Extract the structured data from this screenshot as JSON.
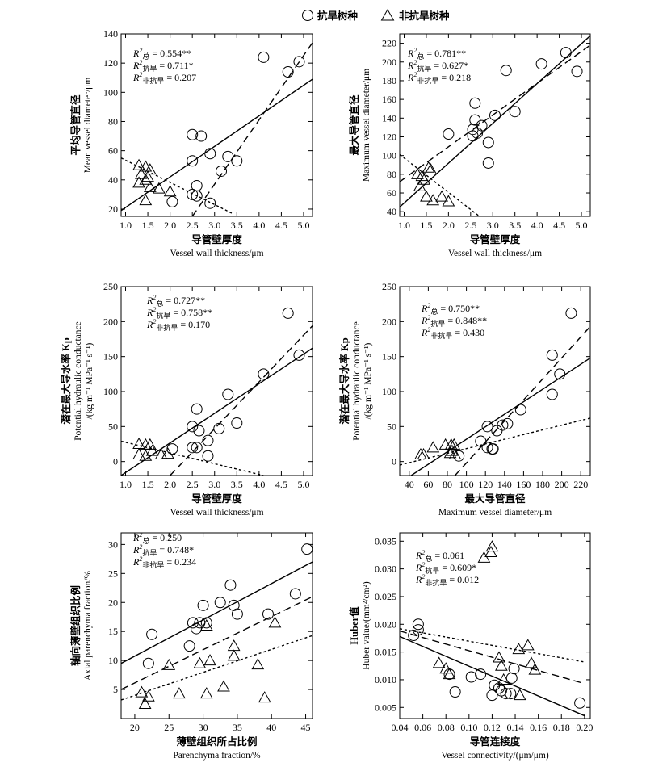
{
  "legend": {
    "drought_label": "抗旱树种",
    "nondrought_label": "非抗旱树种",
    "drought_marker": "circle",
    "nondrought_marker": "triangle"
  },
  "line_styles": {
    "total": "solid",
    "drought": "dashed",
    "nondrought": "dotted"
  },
  "chart_data": [
    {
      "type": "scatter",
      "xlabel_cn": "导管壁厚度",
      "xlabel_en": "Vessel wall thickness/μm",
      "ylabel_cn": "平均导管直径",
      "ylabel_en": "Mean vessel diameter/μm",
      "xlim": [
        0.9,
        5.2
      ],
      "ylim": [
        15,
        140
      ],
      "xticks": [
        1.0,
        1.5,
        2.0,
        2.5,
        3.0,
        3.5,
        4.0,
        4.5,
        5.0
      ],
      "yticks": [
        20,
        40,
        60,
        80,
        100,
        120,
        140
      ],
      "xtick_labels": [
        "1.0",
        "1.5",
        "2.0",
        "2.5",
        "3.0",
        "3.5",
        "4.0",
        "4.5",
        "5.0"
      ],
      "ytick_labels": [
        "20",
        "40",
        "60",
        "80",
        "100",
        "120",
        "140"
      ],
      "stats": [
        "R²总 = 0.554**",
        "R²抗旱 = 0.711*",
        "R²非抗旱 = 0.207"
      ],
      "drought": [
        [
          2.5,
          71
        ],
        [
          2.7,
          70
        ],
        [
          2.5,
          53
        ],
        [
          2.9,
          58
        ],
        [
          3.15,
          46
        ],
        [
          3.3,
          56
        ],
        [
          3.5,
          53
        ],
        [
          2.6,
          36
        ],
        [
          2.5,
          30
        ],
        [
          2.6,
          29
        ],
        [
          2.05,
          25
        ],
        [
          2.9,
          24
        ],
        [
          4.1,
          124
        ],
        [
          4.65,
          114
        ],
        [
          4.9,
          121
        ]
      ],
      "nondrought": [
        [
          1.3,
          50
        ],
        [
          1.45,
          49
        ],
        [
          1.55,
          47
        ],
        [
          1.35,
          44
        ],
        [
          1.5,
          42
        ],
        [
          1.3,
          38
        ],
        [
          1.55,
          35
        ],
        [
          1.75,
          34
        ],
        [
          1.45,
          40
        ],
        [
          2.0,
          32
        ],
        [
          1.45,
          26
        ]
      ],
      "lines": [
        {
          "style": "total",
          "x": [
            0.9,
            5.2
          ],
          "y": [
            19,
            109
          ]
        },
        {
          "style": "drought",
          "x": [
            2.5,
            5.2
          ],
          "y": [
            15,
            134
          ]
        },
        {
          "style": "nondrought",
          "x": [
            0.9,
            3.4
          ],
          "y": [
            55,
            17
          ]
        }
      ]
    },
    {
      "type": "scatter",
      "xlabel_cn": "导管壁厚度",
      "xlabel_en": "Vessel wall thickness/μm",
      "ylabel_cn": "最大导管直径",
      "ylabel_en": "Maximum vessel diameter/μm",
      "xlim": [
        0.9,
        5.2
      ],
      "ylim": [
        35,
        230
      ],
      "xticks": [
        1.0,
        1.5,
        2.0,
        2.5,
        3.0,
        3.5,
        4.0,
        4.5,
        5.0
      ],
      "yticks": [
        40,
        60,
        80,
        100,
        120,
        140,
        160,
        180,
        200,
        220
      ],
      "xtick_labels": [
        "1.0",
        "1.5",
        "2.0",
        "2.5",
        "3.0",
        "3.5",
        "4.0",
        "4.5",
        "5.0"
      ],
      "ytick_labels": [
        "40",
        "60",
        "80",
        "100",
        "120",
        "140",
        "160",
        "180",
        "200",
        "220"
      ],
      "stats": [
        "R²总 = 0.781**",
        "R²抗旱 = 0.627*",
        "R²非抗旱 = 0.218"
      ],
      "drought": [
        [
          2.0,
          123
        ],
        [
          2.55,
          128
        ],
        [
          2.55,
          121
        ],
        [
          2.6,
          156
        ],
        [
          2.6,
          138
        ],
        [
          2.75,
          132
        ],
        [
          2.65,
          124
        ],
        [
          2.9,
          114
        ],
        [
          2.9,
          92
        ],
        [
          3.05,
          143
        ],
        [
          3.3,
          191
        ],
        [
          3.5,
          147
        ],
        [
          4.1,
          198
        ],
        [
          4.65,
          210
        ],
        [
          4.9,
          190
        ]
      ],
      "nondrought": [
        [
          1.3,
          80
        ],
        [
          1.4,
          78
        ],
        [
          1.45,
          74
        ],
        [
          1.35,
          67
        ],
        [
          1.55,
          87
        ],
        [
          1.6,
          85
        ],
        [
          1.5,
          56
        ],
        [
          1.65,
          52
        ],
        [
          1.85,
          56
        ],
        [
          2.0,
          51
        ]
      ],
      "lines": [
        {
          "style": "total",
          "x": [
            0.9,
            5.2
          ],
          "y": [
            45,
            228
          ]
        },
        {
          "style": "drought",
          "x": [
            0.9,
            5.2
          ],
          "y": [
            72,
            218
          ]
        },
        {
          "style": "nondrought",
          "x": [
            0.9,
            2.7
          ],
          "y": [
            101,
            35
          ]
        }
      ]
    },
    {
      "type": "scatter",
      "xlabel_cn": "导管壁厚度",
      "xlabel_en": "Vessel wall thickness/μm",
      "ylabel_cn": "潜在最大导水率 Kp",
      "ylabel_en": "Potential hydraulic conductance",
      "ylabel_unit": "/(kg m⁻¹ MPa⁻¹ s⁻¹)",
      "xlim": [
        0.9,
        5.2
      ],
      "ylim": [
        -20,
        250
      ],
      "xticks": [
        1.0,
        1.5,
        2.0,
        2.5,
        3.0,
        3.5,
        4.0,
        4.5,
        5.0
      ],
      "yticks": [
        0,
        50,
        100,
        150,
        200,
        250
      ],
      "xtick_labels": [
        "1.0",
        "1.5",
        "2.0",
        "2.5",
        "3.0",
        "3.5",
        "4.0",
        "4.5",
        "5.0"
      ],
      "ytick_labels": [
        "0",
        "50",
        "100",
        "150",
        "200",
        "250"
      ],
      "stats": [
        "R²总 = 0.727**",
        "R²抗旱 = 0.758**",
        "R²非抗旱 = 0.170"
      ],
      "drought": [
        [
          2.05,
          18
        ],
        [
          2.5,
          50
        ],
        [
          2.5,
          20
        ],
        [
          2.6,
          20
        ],
        [
          2.6,
          75
        ],
        [
          2.65,
          44
        ],
        [
          2.85,
          30
        ],
        [
          2.85,
          8
        ],
        [
          3.1,
          47
        ],
        [
          3.3,
          96
        ],
        [
          3.5,
          55
        ],
        [
          4.1,
          125
        ],
        [
          4.65,
          212
        ],
        [
          4.9,
          152
        ]
      ],
      "nondrought": [
        [
          1.3,
          25
        ],
        [
          1.45,
          24
        ],
        [
          1.55,
          24
        ],
        [
          1.3,
          10
        ],
        [
          1.45,
          8
        ],
        [
          1.6,
          15
        ],
        [
          1.8,
          10
        ],
        [
          1.95,
          11
        ]
      ],
      "lines": [
        {
          "style": "total",
          "x": [
            0.9,
            5.2
          ],
          "y": [
            -20,
            162
          ]
        },
        {
          "style": "drought",
          "x": [
            2.0,
            5.2
          ],
          "y": [
            -20,
            194
          ]
        },
        {
          "style": "nondrought",
          "x": [
            0.9,
            4.1
          ],
          "y": [
            29,
            -20
          ]
        }
      ]
    },
    {
      "type": "scatter",
      "xlabel_cn": "最大导管直径",
      "xlabel_en": "Maximum vessel diameter/μm",
      "ylabel_cn": "潜在最大导水率 Kp",
      "ylabel_en": "Potential hydraulic conductance",
      "ylabel_unit": "/(kg m⁻¹ MPa⁻¹ s⁻¹)",
      "xlim": [
        30,
        230
      ],
      "ylim": [
        -20,
        250
      ],
      "xticks": [
        40,
        60,
        80,
        100,
        120,
        140,
        160,
        180,
        200,
        220
      ],
      "yticks": [
        0,
        50,
        100,
        150,
        200,
        250
      ],
      "xtick_labels": [
        "40",
        "60",
        "80",
        "100",
        "120",
        "140",
        "160",
        "180",
        "200",
        "220"
      ],
      "ytick_labels": [
        "0",
        "50",
        "100",
        "150",
        "200",
        "250"
      ],
      "stats": [
        "R²总 = 0.750**",
        "R²抗旱 = 0.848**",
        "R²非抗旱 = 0.430"
      ],
      "drought": [
        [
          92,
          8
        ],
        [
          115,
          29
        ],
        [
          122,
          50
        ],
        [
          122,
          20
        ],
        [
          127,
          18
        ],
        [
          128,
          18
        ],
        [
          132,
          44
        ],
        [
          138,
          52
        ],
        [
          143,
          54
        ],
        [
          157,
          74
        ],
        [
          190,
          96
        ],
        [
          190,
          152
        ],
        [
          198,
          125
        ],
        [
          210,
          212
        ]
      ],
      "nondrought": [
        [
          52,
          10
        ],
        [
          55,
          10
        ],
        [
          65,
          20
        ],
        [
          78,
          24
        ],
        [
          84,
          24
        ],
        [
          87,
          24
        ],
        [
          83,
          12
        ],
        [
          88,
          10
        ],
        [
          85,
          15
        ]
      ],
      "lines": [
        {
          "style": "total",
          "x": [
            42,
            230
          ],
          "y": [
            -20,
            148
          ]
        },
        {
          "style": "drought",
          "x": [
            88,
            230
          ],
          "y": [
            -20,
            193
          ]
        },
        {
          "style": "nondrought",
          "x": [
            30,
            230
          ],
          "y": [
            -5,
            62
          ]
        }
      ]
    },
    {
      "type": "scatter",
      "xlabel_cn": "薄壁组织所占比例",
      "xlabel_en": "Parenchyma fraction/%",
      "ylabel_cn": "轴向薄壁组织比例",
      "ylabel_en": "Axial parenchyma fraction/%",
      "xlim": [
        18,
        46
      ],
      "ylim": [
        0,
        32
      ],
      "xticks": [
        20,
        25,
        30,
        35,
        40,
        45
      ],
      "yticks": [
        5,
        10,
        15,
        20,
        25,
        30
      ],
      "xtick_labels": [
        "20",
        "25",
        "30",
        "35",
        "40",
        "45"
      ],
      "ytick_labels": [
        "5",
        "10",
        "15",
        "20",
        "25",
        "30"
      ],
      "stats": [
        "R²总 = 0.250",
        "R²抗旱 = 0.748*",
        "R²非抗旱 = 0.234"
      ],
      "drought": [
        [
          22,
          9.5
        ],
        [
          22.5,
          14.5
        ],
        [
          28,
          12.5
        ],
        [
          28.5,
          16.5
        ],
        [
          29,
          15.5
        ],
        [
          29.5,
          16.5
        ],
        [
          30,
          19.5
        ],
        [
          30.5,
          16.5
        ],
        [
          32.5,
          20
        ],
        [
          34,
          23
        ],
        [
          34.5,
          19.5
        ],
        [
          35,
          18
        ],
        [
          39.5,
          18
        ],
        [
          43.5,
          21.5
        ],
        [
          45.2,
          29.2
        ]
      ],
      "nondrought": [
        [
          21,
          4.5
        ],
        [
          21.5,
          2.5
        ],
        [
          22,
          3.8
        ],
        [
          25,
          9.2
        ],
        [
          26.5,
          4.3
        ],
        [
          29.5,
          9.5
        ],
        [
          30.5,
          4.3
        ],
        [
          31,
          10
        ],
        [
          30.5,
          16
        ],
        [
          33,
          5.5
        ],
        [
          34.5,
          10.8
        ],
        [
          34.5,
          12.5
        ],
        [
          38,
          9.3
        ],
        [
          39,
          3.6
        ],
        [
          40.5,
          16.5
        ]
      ],
      "lines": [
        {
          "style": "total",
          "x": [
            18,
            46
          ],
          "y": [
            9.5,
            27
          ]
        },
        {
          "style": "drought",
          "x": [
            18,
            46
          ],
          "y": [
            5,
            21
          ]
        },
        {
          "style": "nondrought",
          "x": [
            18,
            46
          ],
          "y": [
            3.2,
            14.3
          ]
        }
      ]
    },
    {
      "type": "scatter",
      "xlabel_cn": "导管连接度",
      "xlabel_en": "Vessel connectivity/(μm/μm)",
      "ylabel_cn": "Huber值",
      "ylabel_en": "Huber value/(mm²/cm²)",
      "xlim": [
        0.04,
        0.205
      ],
      "ylim": [
        0.003,
        0.0365
      ],
      "xticks": [
        0.04,
        0.06,
        0.08,
        0.1,
        0.12,
        0.14,
        0.16,
        0.18,
        0.2
      ],
      "yticks": [
        0.005,
        0.01,
        0.015,
        0.02,
        0.025,
        0.03,
        0.035
      ],
      "xtick_labels": [
        "0.04",
        "0.06",
        "0.08",
        "0.10",
        "0.12",
        "0.14",
        "0.16",
        "0.18",
        "0.20"
      ],
      "ytick_labels": [
        "0.005",
        "0.010",
        "0.015",
        "0.020",
        "0.025",
        "0.030",
        "0.035"
      ],
      "stats": [
        "R²总 = 0.061",
        "R²抗旱 = 0.609*",
        "R²非抗旱 = 0.012"
      ],
      "drought": [
        [
          0.052,
          0.018
        ],
        [
          0.056,
          0.02
        ],
        [
          0.056,
          0.019
        ],
        [
          0.083,
          0.011
        ],
        [
          0.088,
          0.0078
        ],
        [
          0.102,
          0.0105
        ],
        [
          0.11,
          0.011
        ],
        [
          0.12,
          0.0072
        ],
        [
          0.122,
          0.009
        ],
        [
          0.126,
          0.0085
        ],
        [
          0.128,
          0.008
        ],
        [
          0.132,
          0.0075
        ],
        [
          0.136,
          0.0075
        ],
        [
          0.137,
          0.0103
        ],
        [
          0.139,
          0.012
        ],
        [
          0.196,
          0.0058
        ]
      ],
      "nondrought": [
        [
          0.074,
          0.013
        ],
        [
          0.08,
          0.012
        ],
        [
          0.083,
          0.011
        ],
        [
          0.113,
          0.032
        ],
        [
          0.119,
          0.033
        ],
        [
          0.12,
          0.034
        ],
        [
          0.126,
          0.014
        ],
        [
          0.128,
          0.0125
        ],
        [
          0.13,
          0.01
        ],
        [
          0.143,
          0.0155
        ],
        [
          0.144,
          0.0072
        ],
        [
          0.151,
          0.0162
        ],
        [
          0.154,
          0.013
        ],
        [
          0.157,
          0.0118
        ]
      ],
      "lines": [
        {
          "style": "total",
          "x": [
            0.04,
            0.2
          ],
          "y": [
            0.0178,
            0.0035
          ]
        },
        {
          "style": "drought",
          "x": [
            0.04,
            0.2
          ],
          "y": [
            0.0188,
            0.0093
          ]
        },
        {
          "style": "nondrought",
          "x": [
            0.04,
            0.2
          ],
          "y": [
            0.0192,
            0.0132
          ]
        }
      ]
    }
  ]
}
